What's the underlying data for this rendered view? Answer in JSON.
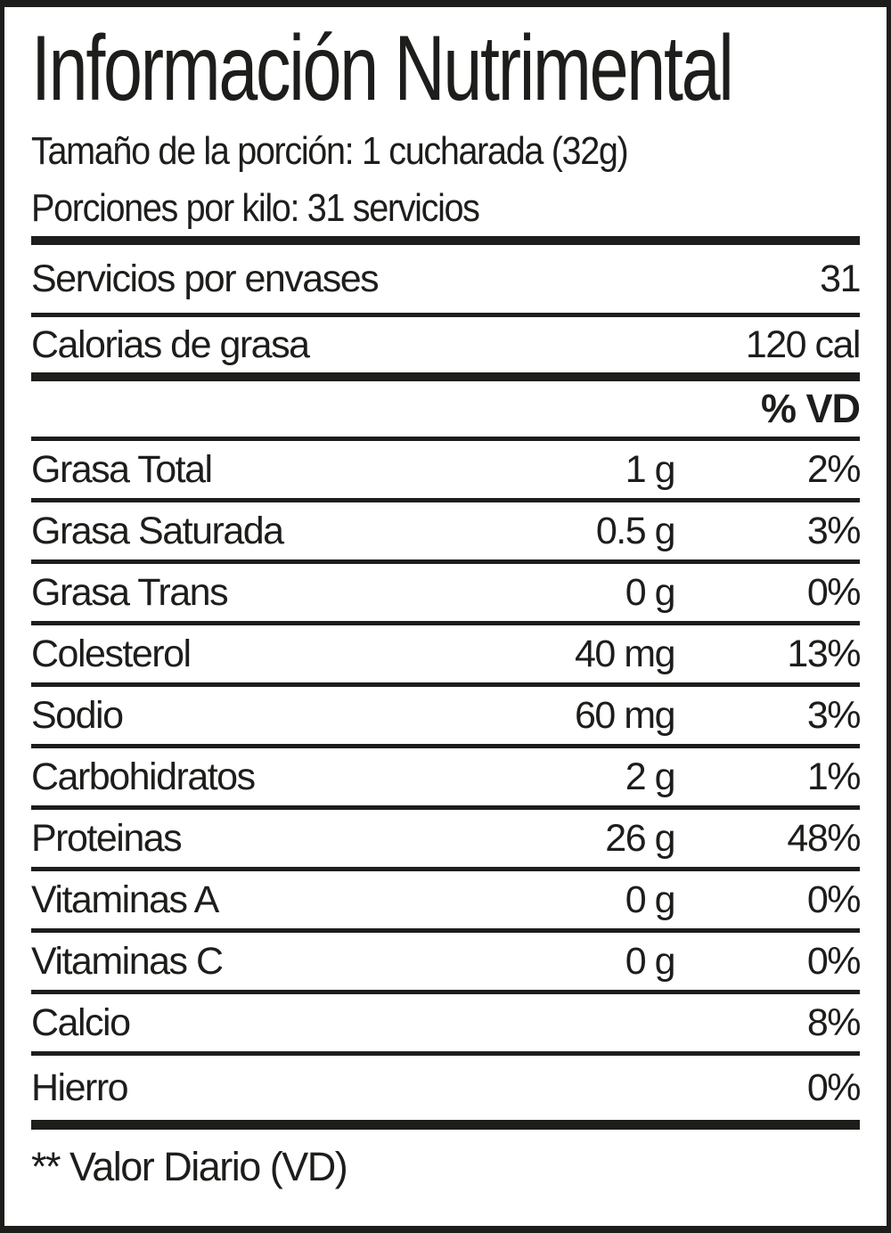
{
  "label": {
    "title": "Información Nutrimental",
    "serving_size": "Tamaño de la porción: 1 cucharada (32g)",
    "servings_per_kilo": "Porciones por kilo: 31 servicios",
    "info_rows": [
      {
        "name": "Servicios por envases",
        "value": "31"
      },
      {
        "name": "Calorias de grasa",
        "value": "120 cal"
      }
    ],
    "percent_header": "% VD",
    "nutrients": [
      {
        "name": "Grasa Total",
        "amount": "1 g",
        "dv": "2%"
      },
      {
        "name": "Grasa Saturada",
        "amount": "0.5 g",
        "dv": "3%"
      },
      {
        "name": "Grasa Trans",
        "amount": "0 g",
        "dv": "0%"
      },
      {
        "name": "Colesterol",
        "amount": "40 mg",
        "dv": "13%"
      },
      {
        "name": "Sodio",
        "amount": "60 mg",
        "dv": "3%"
      },
      {
        "name": "Carbohidratos",
        "amount": "2 g",
        "dv": "1%"
      },
      {
        "name": "Proteinas",
        "amount": "26 g",
        "dv": "48%"
      },
      {
        "name": "Vitaminas A",
        "amount": "0 g",
        "dv": "0%"
      },
      {
        "name": "Vitaminas C",
        "amount": "0 g",
        "dv": "0%"
      },
      {
        "name": "Calcio",
        "amount": "",
        "dv": "8%"
      },
      {
        "name": "Hierro",
        "amount": "",
        "dv": "0%"
      }
    ],
    "footnote": "** Valor Diario (VD)"
  },
  "colors": {
    "ink": "#1d1d1b",
    "background": "#ffffff"
  }
}
